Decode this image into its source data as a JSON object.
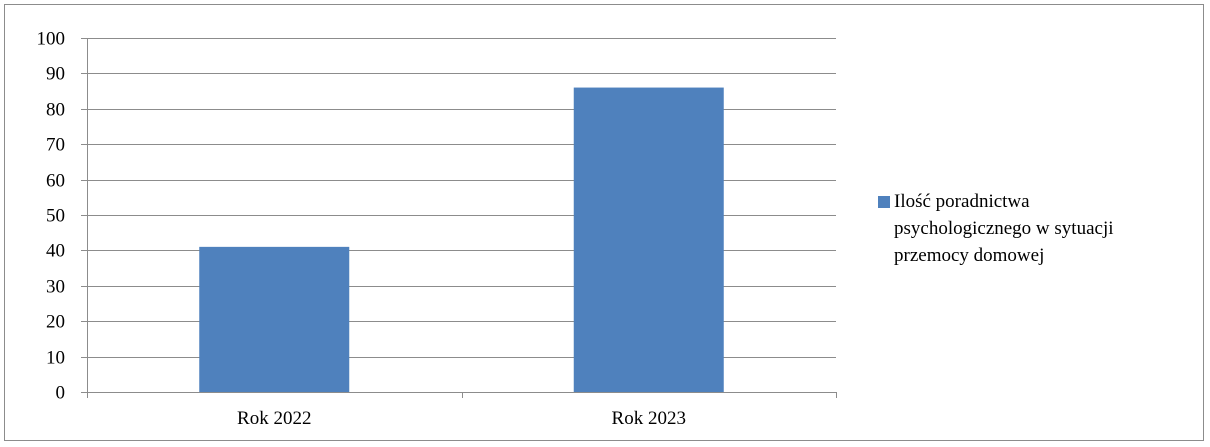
{
  "chart_data": {
    "type": "bar",
    "categories": [
      "Rok 2022",
      "Rok 2023"
    ],
    "series": [
      {
        "name": "Ilość poradnictwa psychologicznego w sytuacji przemocy domowej",
        "values": [
          41,
          86
        ],
        "color": "#4f81bd"
      }
    ],
    "title": "",
    "xlabel": "",
    "ylabel": "",
    "ylim": [
      0,
      100
    ],
    "yticks": [
      0,
      10,
      20,
      30,
      40,
      50,
      60,
      70,
      80,
      90,
      100
    ],
    "grid": true,
    "legend_position": "right"
  }
}
